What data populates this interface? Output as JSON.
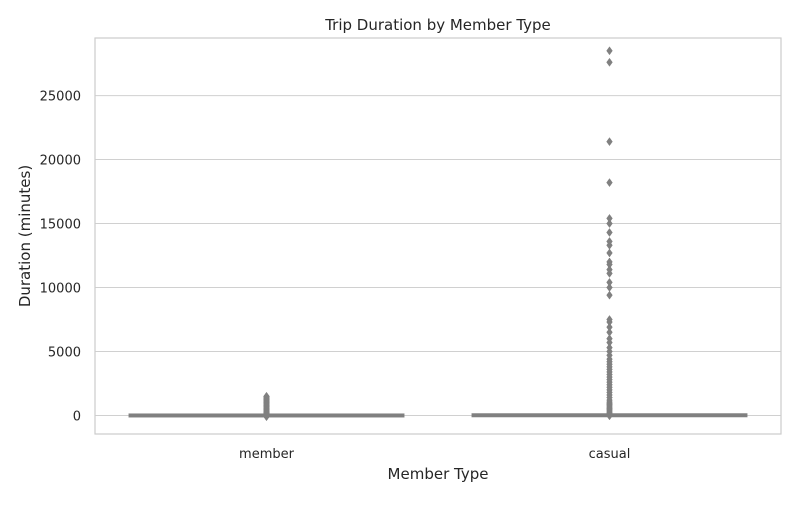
{
  "chart_data": {
    "type": "box",
    "title": "Trip Duration by Member Type",
    "xlabel": "Member Type",
    "ylabel": "Duration (minutes)",
    "ylim": [
      -1450,
      29500
    ],
    "yticks": [
      0,
      5000,
      10000,
      15000,
      20000,
      25000
    ],
    "grid": true,
    "colors": {
      "box": "#808080",
      "grid": "#d0d0d0",
      "frame": "#cccccc",
      "background": "#ffffff"
    },
    "categories": [
      "member",
      "casual"
    ],
    "series": [
      {
        "category": "member",
        "min": 1,
        "q1": 6,
        "median": 10,
        "q3": 18,
        "max": 36,
        "outliers": [
          -100,
          80,
          120,
          160,
          200,
          260,
          320,
          380,
          440,
          500,
          560,
          620,
          680,
          740,
          800,
          860,
          920,
          980,
          1040,
          1100,
          1160,
          1220,
          1280,
          1340,
          1400,
          1460,
          1500
        ]
      },
      {
        "category": "casual",
        "min": 1,
        "q1": 9,
        "median": 17,
        "q3": 34,
        "max": 70,
        "outliers": [
          -30,
          150,
          250,
          350,
          450,
          550,
          650,
          750,
          850,
          950,
          1050,
          1200,
          1400,
          1600,
          1800,
          2000,
          2200,
          2400,
          2600,
          2800,
          3000,
          3200,
          3400,
          3600,
          3800,
          4000,
          4200,
          4400,
          4700,
          5000,
          5300,
          5700,
          6000,
          6500,
          6900,
          7300,
          7500,
          9400,
          10000,
          10400,
          11100,
          11400,
          11800,
          12000,
          12700,
          13300,
          13600,
          14300,
          15000,
          15400,
          18200,
          21400,
          27600,
          28500
        ]
      }
    ]
  }
}
